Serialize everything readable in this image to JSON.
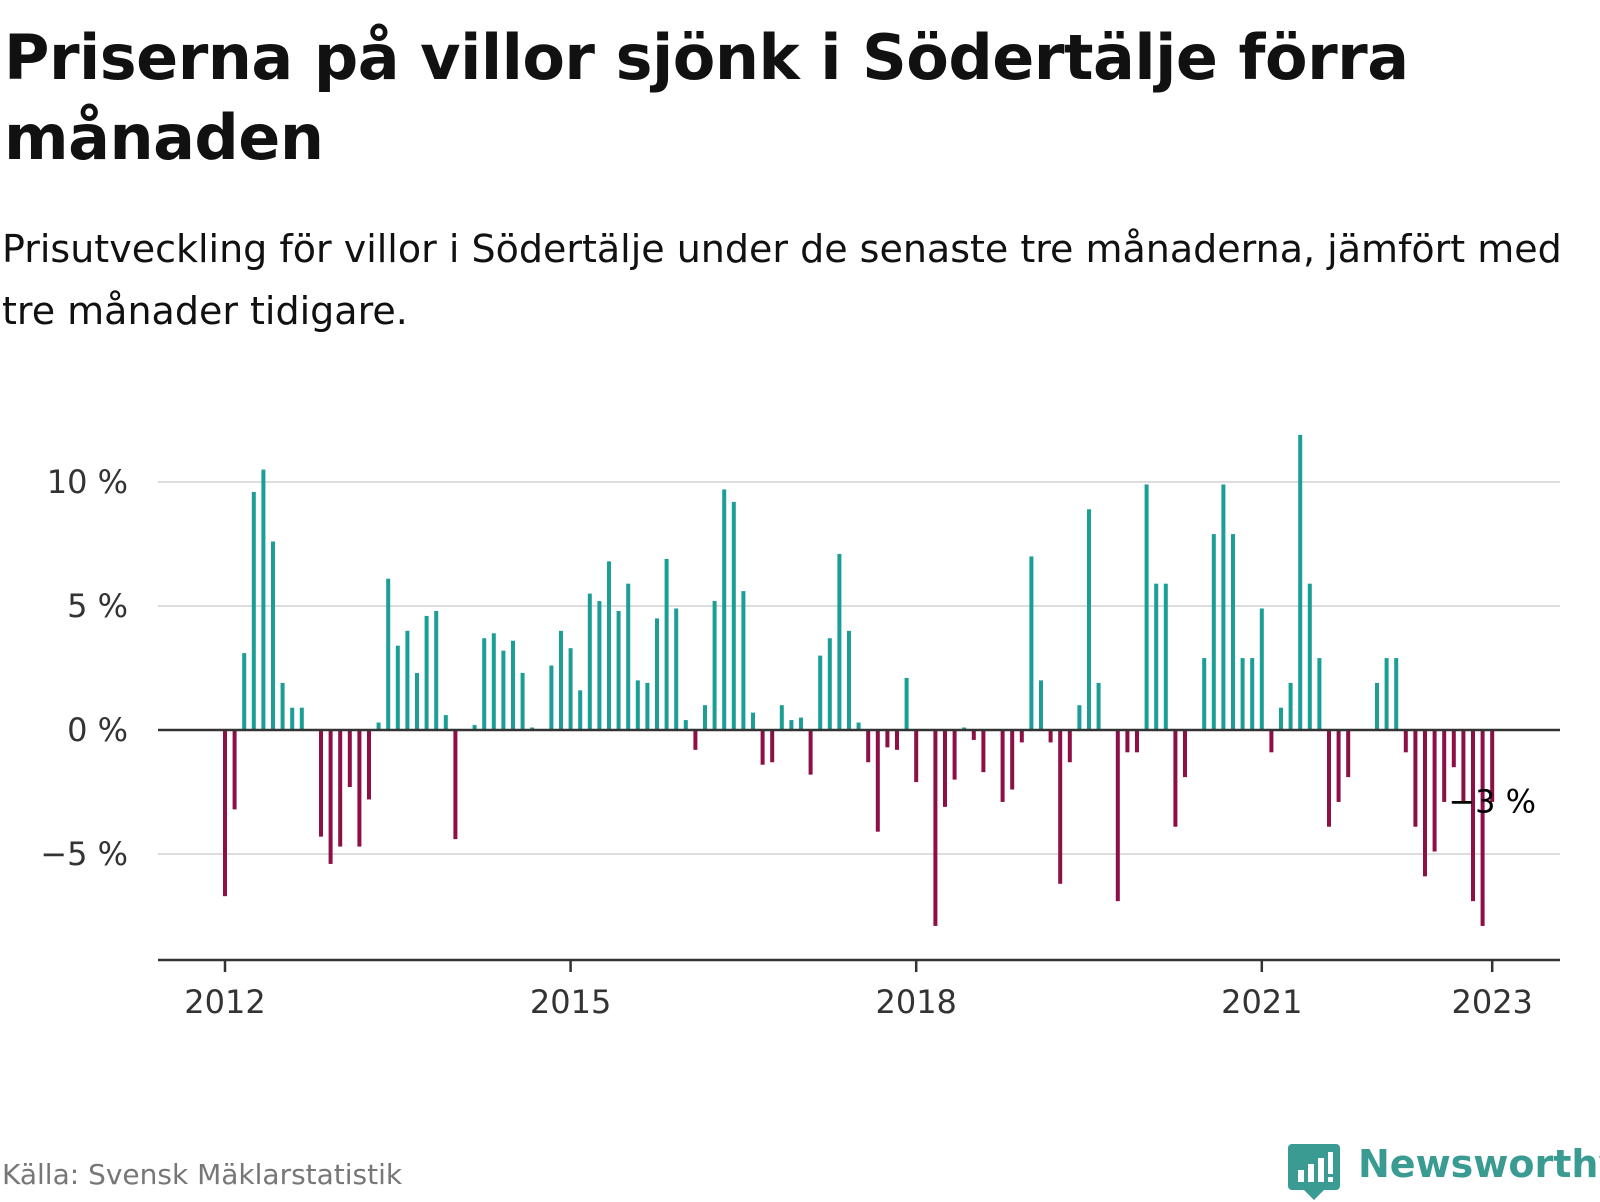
{
  "title": "Priserna på villor sjönk i Södertälje förra månaden",
  "subtitle": "Prisutveckling för villor i Södertälje under de senaste tre månaderna, jämfört med tre månader tidigare.",
  "source": "Källa: Svensk Mäklarstatistik",
  "brand": "Newsworthy",
  "colors": {
    "positive": "#1a9e96",
    "negative": "#8e0f45",
    "grid": "#dddddd",
    "axis": "#333333",
    "brand": "#3a9b93"
  },
  "chart_data": {
    "type": "bar",
    "title": "",
    "xlabel": "",
    "ylabel": "",
    "ylim": [
      -9,
      12
    ],
    "grid": true,
    "y_ticks": [
      {
        "value": -5,
        "label": "−5 %"
      },
      {
        "value": 0,
        "label": "0 %"
      },
      {
        "value": 5,
        "label": "5 %"
      },
      {
        "value": 10,
        "label": "10 %"
      }
    ],
    "x_ticks": [
      {
        "date": "2012-01",
        "label": "2012"
      },
      {
        "date": "2015-01",
        "label": "2015"
      },
      {
        "date": "2018-01",
        "label": "2018"
      },
      {
        "date": "2021-01",
        "label": "2021"
      },
      {
        "date": "2023-01",
        "label": "2023"
      }
    ],
    "x_start": "2012-01",
    "unit": "%",
    "values": [
      -6.7,
      -3.2,
      3.1,
      9.6,
      10.5,
      7.6,
      1.9,
      0.9,
      0.9,
      null,
      -4.3,
      -5.4,
      -4.7,
      -2.3,
      -4.7,
      -2.8,
      0.3,
      6.1,
      3.4,
      4.0,
      2.3,
      4.6,
      4.8,
      0.6,
      -4.4,
      null,
      0.2,
      3.7,
      3.9,
      3.2,
      3.6,
      2.3,
      0.1,
      null,
      2.6,
      4.0,
      3.3,
      1.6,
      5.5,
      5.2,
      6.8,
      4.8,
      5.9,
      2.0,
      1.9,
      4.5,
      6.9,
      4.9,
      0.4,
      -0.8,
      1.0,
      5.2,
      9.7,
      9.2,
      5.6,
      0.7,
      -1.4,
      -1.3,
      1.0,
      0.4,
      0.5,
      -1.8,
      3.0,
      3.7,
      7.1,
      4.0,
      0.3,
      -1.3,
      -4.1,
      -0.7,
      -0.8,
      2.1,
      -2.1,
      null,
      -7.9,
      -3.1,
      -2.0,
      0.1,
      -0.4,
      -1.7,
      null,
      -2.9,
      -2.4,
      -0.5,
      7.0,
      2.0,
      -0.5,
      -6.2,
      -1.3,
      1.0,
      8.9,
      1.9,
      null,
      -6.9,
      -0.9,
      -0.9,
      9.9,
      5.9,
      5.9,
      -3.9,
      -1.9,
      null,
      2.9,
      7.9,
      9.9,
      7.9,
      2.9,
      2.9,
      4.9,
      -0.9,
      0.9,
      1.9,
      11.9,
      5.9,
      2.9,
      -3.9,
      -2.9,
      -1.9,
      null,
      null,
      1.9,
      2.9,
      2.9,
      -0.9,
      -3.9,
      -5.9,
      -4.9,
      -2.9,
      -1.5,
      -2.9,
      -6.9,
      -7.9,
      -2.9
    ],
    "annotations": [
      {
        "date": "2023-01",
        "value": -3,
        "label": "−3 %"
      }
    ]
  }
}
